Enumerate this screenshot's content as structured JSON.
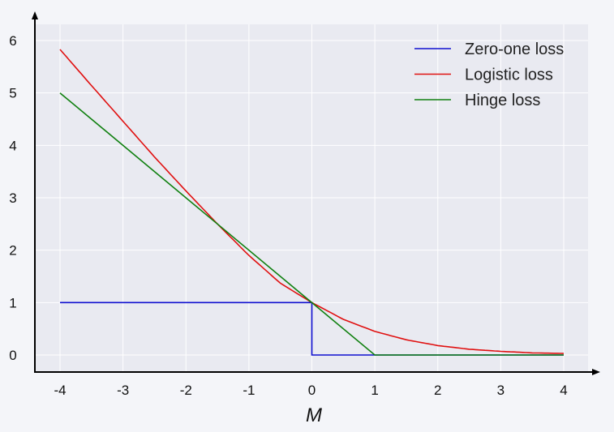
{
  "chart_data": {
    "type": "line",
    "title": "",
    "xlabel": "M",
    "ylabel": "",
    "xlim": [
      -4,
      4
    ],
    "ylim": [
      0,
      6
    ],
    "xticks": [
      "-4",
      "-3",
      "-2",
      "-1",
      "0",
      "1",
      "2",
      "3",
      "4"
    ],
    "yticks": [
      "0",
      "1",
      "2",
      "3",
      "4",
      "5",
      "6"
    ],
    "grid": true,
    "legend_position": "top-right",
    "series": [
      {
        "name": "Zero-one loss",
        "color": "#1010d0",
        "x": [
          -4,
          0,
          0,
          4
        ],
        "y": [
          1,
          1,
          0,
          0
        ]
      },
      {
        "name": "Logistic loss",
        "color": "#e01010",
        "x": [
          -4,
          -3.5,
          -3,
          -2.5,
          -2,
          -1.5,
          -1,
          -0.5,
          0,
          0.5,
          1,
          1.5,
          2,
          2.5,
          3,
          3.5,
          4
        ],
        "y": [
          5.83,
          5.14,
          4.46,
          3.78,
          3.13,
          2.5,
          1.9,
          1.37,
          1.0,
          0.68,
          0.45,
          0.29,
          0.18,
          0.11,
          0.07,
          0.04,
          0.03
        ]
      },
      {
        "name": "Hinge loss",
        "color": "#108010",
        "x": [
          -4,
          1,
          4
        ],
        "y": [
          5,
          0,
          0
        ]
      }
    ]
  }
}
